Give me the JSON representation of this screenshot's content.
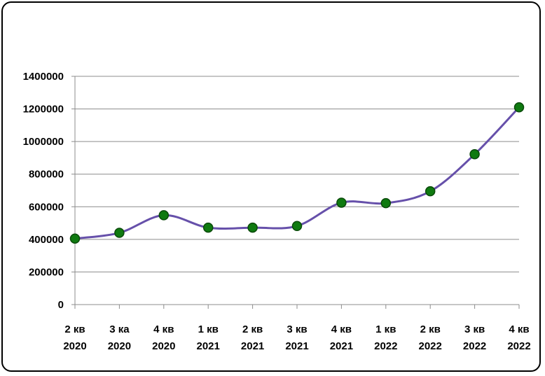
{
  "chart_data": {
    "type": "line",
    "title": "",
    "xlabel": "",
    "ylabel": "",
    "categories": [
      [
        "2 кв",
        "2020"
      ],
      [
        "3 ка",
        "2020"
      ],
      [
        "4 кв",
        "2020"
      ],
      [
        "1 кв",
        "2021"
      ],
      [
        "2 кв",
        "2021"
      ],
      [
        "3 кв",
        "2021"
      ],
      [
        "4 кв",
        "2021"
      ],
      [
        "1 кв",
        "2022"
      ],
      [
        "2 кв",
        "2022"
      ],
      [
        "3 кв",
        "2022"
      ],
      [
        "4 кв",
        "2022"
      ]
    ],
    "series": [
      {
        "values": [
          405000,
          440000,
          548000,
          472000,
          472000,
          482000,
          625000,
          622000,
          695000,
          922000,
          1210000
        ]
      }
    ],
    "ylim": [
      0,
      1400000
    ],
    "yticks": [
      0,
      200000,
      400000,
      600000,
      800000,
      1000000,
      1200000,
      1400000
    ],
    "grid": true,
    "smooth": true,
    "colors": {
      "line": "#6650aa",
      "marker_fill": "#0f7a10",
      "marker_stroke": "#0a4a0a",
      "grid": "#8c8c8c"
    }
  }
}
